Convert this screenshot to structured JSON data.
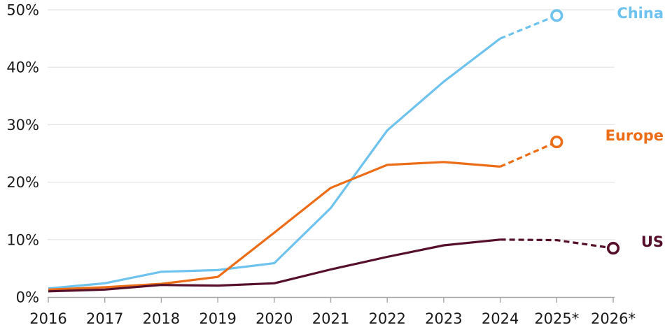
{
  "chart_data": {
    "type": "line",
    "title": "",
    "xlabel": "",
    "ylabel": "",
    "x_labels": [
      "2016",
      "2017",
      "2018",
      "2019",
      "2020",
      "2021",
      "2022",
      "2023",
      "2024",
      "2025*",
      "2026*"
    ],
    "y_tick_labels": [
      "0%",
      "10%",
      "20%",
      "30%",
      "40%",
      "50%"
    ],
    "ylim": [
      0,
      50
    ],
    "grid": "horizontal",
    "legend_position": "right-end-labels",
    "forecast_style": "dashed-with-open-circle-marker",
    "series": [
      {
        "name": "China",
        "color": "#6EC3EE",
        "values": [
          1.5,
          2.4,
          4.4,
          4.7,
          5.9,
          15.5,
          29,
          37.5,
          45,
          49,
          null
        ],
        "solid_end_index": 8,
        "marker": "open-circle"
      },
      {
        "name": "Europe",
        "color": "#EC6D17",
        "values": [
          1.3,
          1.7,
          2.3,
          3.5,
          11.2,
          19,
          23,
          23.5,
          22.7,
          27,
          null
        ],
        "solid_end_index": 8,
        "marker": "open-circle"
      },
      {
        "name": "US",
        "color": "#550F2B",
        "values": [
          1,
          1.3,
          2.1,
          2,
          2.4,
          4.8,
          7,
          9,
          10,
          9.9,
          8.5
        ],
        "solid_end_index": 8,
        "marker": "open-circle"
      }
    ]
  },
  "colors": {
    "grid": "#E4E4E4",
    "axis": "#A6A6A6",
    "tick_text": "#1A1A1A",
    "background": "#FFFFFF"
  }
}
